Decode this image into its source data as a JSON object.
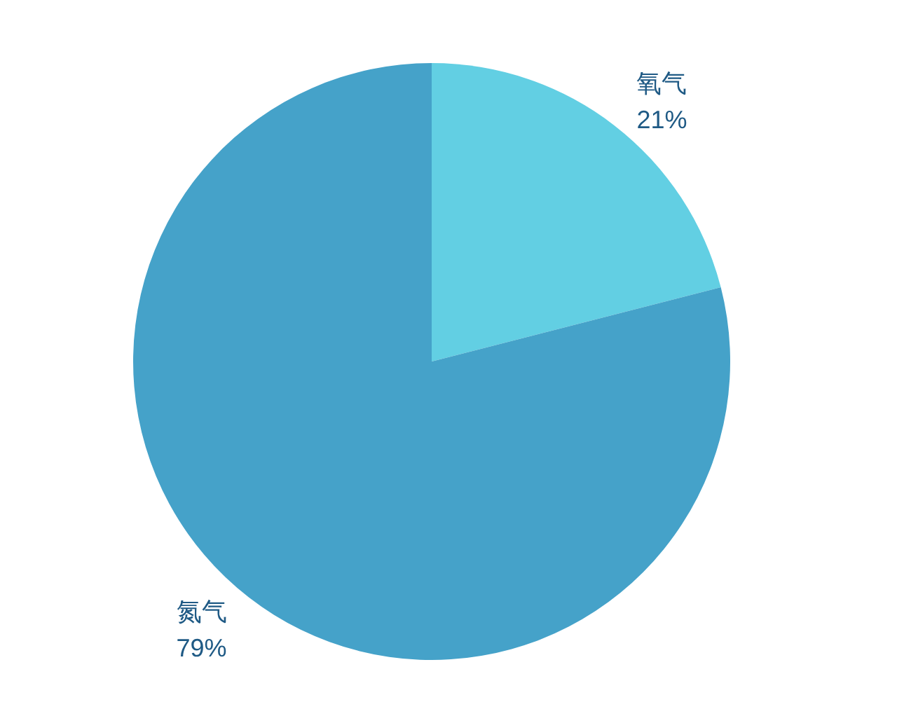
{
  "chart_data": {
    "type": "pie",
    "categories": [
      "氧气",
      "氮气"
    ],
    "values": [
      21,
      79
    ],
    "value_labels": [
      "21%",
      "79%"
    ],
    "colors": [
      "#62cfe3",
      "#45a2c9"
    ]
  }
}
